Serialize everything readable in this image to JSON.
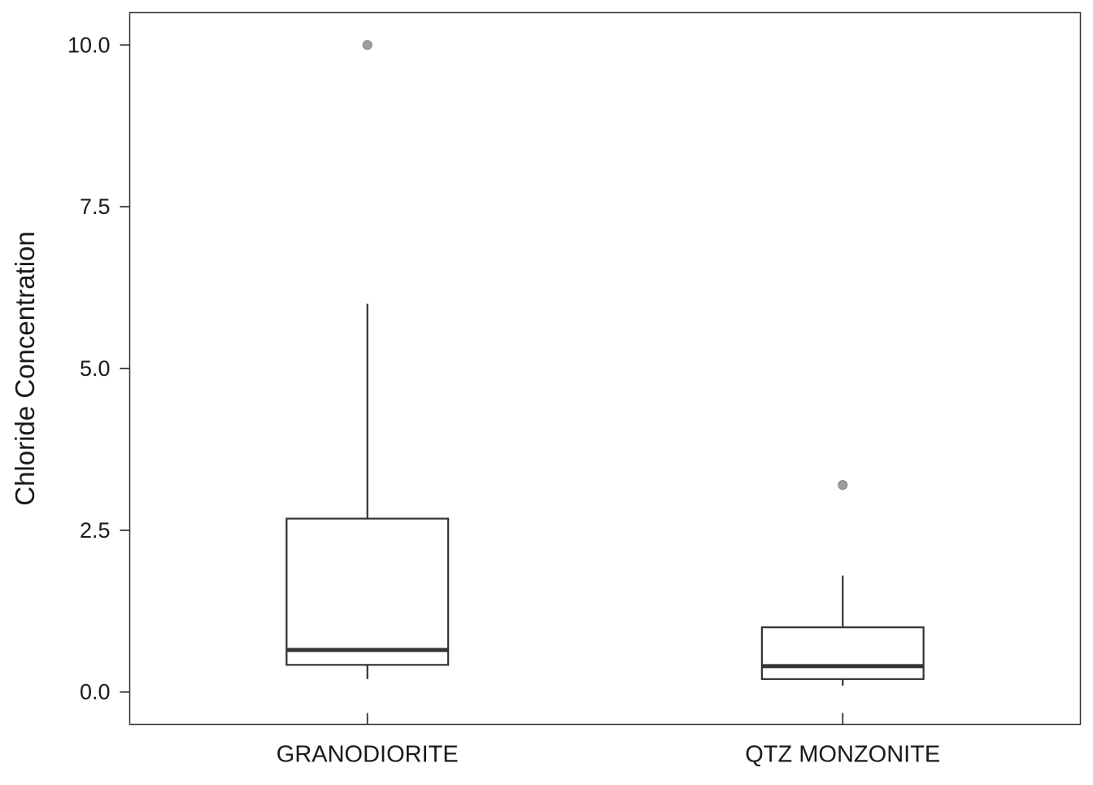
{
  "chart_data": {
    "type": "box",
    "ylabel": "Chloride Concentration",
    "xlabel": "",
    "ylim": [
      -0.5,
      10.5
    ],
    "yticks": [
      0.0,
      2.5,
      5.0,
      7.5,
      10.0
    ],
    "ytick_labels": [
      "0.0",
      "2.5",
      "5.0",
      "7.5",
      "10.0"
    ],
    "grid": false,
    "categories": [
      "GRANODIORITE",
      "QTZ MONZONITE"
    ],
    "boxes": [
      {
        "category": "GRANODIORITE",
        "whisker_low": 0.2,
        "q1": 0.42,
        "median": 0.65,
        "q3": 2.68,
        "whisker_high": 6.0,
        "outliers": [
          10.0
        ]
      },
      {
        "category": "QTZ MONZONITE",
        "whisker_low": 0.1,
        "q1": 0.2,
        "median": 0.4,
        "q3": 1.0,
        "whisker_high": 1.8,
        "outliers": [
          3.2
        ]
      }
    ],
    "colors": {
      "box_stroke": "#333333",
      "median": "#333333",
      "outlier": "#9e9e9e",
      "frame": "#333333",
      "text": "#1a1a1a"
    }
  }
}
